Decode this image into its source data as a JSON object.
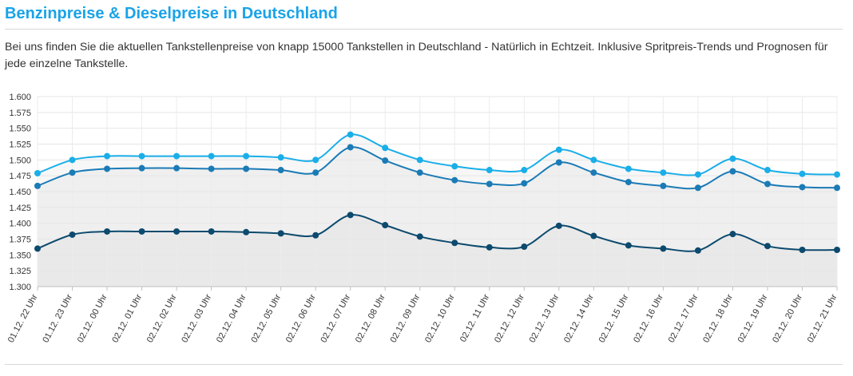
{
  "header": {
    "title": "Benzinpreise & Dieselpreise in Deutschland",
    "description": "Bei uns finden Sie die aktuellen Tankstellenpreise von knapp 15000 Tankstellen in Deutschland - Natürlich in Echtzeit. Inklusive Spritpreis-Trends und Prognosen für jede einzelne Tankstelle."
  },
  "chart_data": {
    "type": "area",
    "title": "",
    "xlabel": "",
    "ylabel": "",
    "ylim": [
      1.3,
      1.6
    ],
    "yticks": [
      "1.300",
      "1.325",
      "1.350",
      "1.375",
      "1.400",
      "1.425",
      "1.450",
      "1.475",
      "1.500",
      "1.525",
      "1.550",
      "1.575",
      "1.600"
    ],
    "grid": true,
    "legend": "none",
    "categories": [
      "01.12. 22 Uhr",
      "01.12. 23 Uhr",
      "02.12. 00 Uhr",
      "02.12. 01 Uhr",
      "02.12. 02 Uhr",
      "02.12. 03 Uhr",
      "02.12. 04 Uhr",
      "02.12. 05 Uhr",
      "02.12. 06 Uhr",
      "02.12. 07 Uhr",
      "02.12. 08 Uhr",
      "02.12. 09 Uhr",
      "02.12. 10 Uhr",
      "02.12. 11 Uhr",
      "02.12. 12 Uhr",
      "02.12. 13 Uhr",
      "02.12. 14 Uhr",
      "02.12. 15 Uhr",
      "02.12. 16 Uhr",
      "02.12. 17 Uhr",
      "02.12. 18 Uhr",
      "02.12. 19 Uhr",
      "02.12. 20 Uhr",
      "02.12. 21 Uhr"
    ],
    "series": [
      {
        "color": "#1aaee8",
        "values": [
          1.479,
          1.5,
          1.506,
          1.506,
          1.506,
          1.506,
          1.506,
          1.504,
          1.5,
          1.54,
          1.519,
          1.5,
          1.49,
          1.484,
          1.484,
          1.516,
          1.5,
          1.486,
          1.48,
          1.477,
          1.502,
          1.484,
          1.478,
          1.477
        ]
      },
      {
        "color": "#1b7bb6",
        "values": [
          1.459,
          1.48,
          1.486,
          1.487,
          1.487,
          1.486,
          1.486,
          1.484,
          1.48,
          1.52,
          1.499,
          1.48,
          1.468,
          1.462,
          1.463,
          1.496,
          1.48,
          1.465,
          1.459,
          1.456,
          1.482,
          1.462,
          1.457,
          1.456
        ]
      },
      {
        "color": "#0c4a6e",
        "values": [
          1.36,
          1.382,
          1.387,
          1.387,
          1.387,
          1.387,
          1.386,
          1.384,
          1.381,
          1.413,
          1.397,
          1.379,
          1.369,
          1.362,
          1.363,
          1.396,
          1.38,
          1.365,
          1.36,
          1.357,
          1.383,
          1.364,
          1.358,
          1.358
        ]
      }
    ]
  }
}
